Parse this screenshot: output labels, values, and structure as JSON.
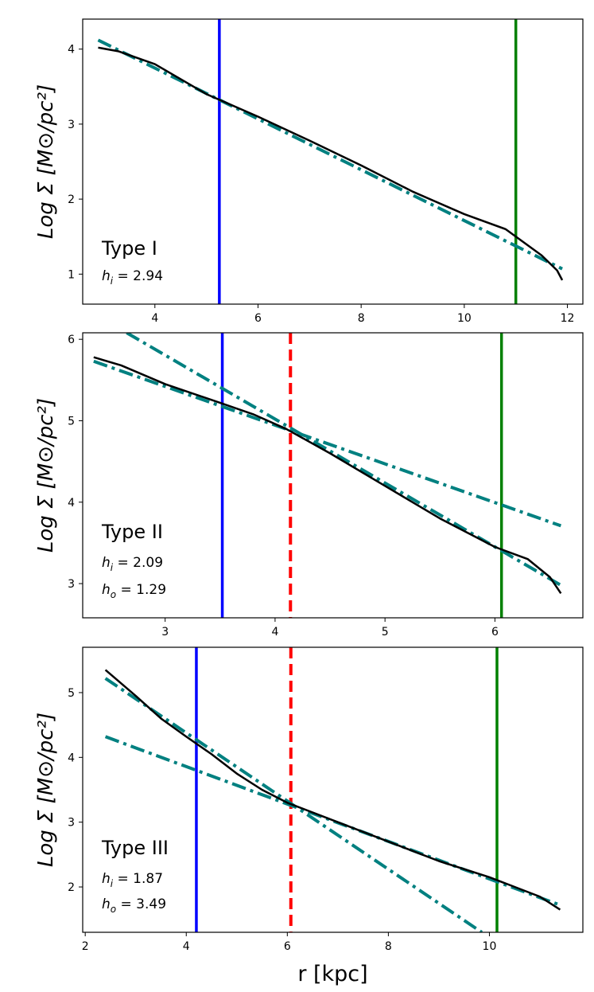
{
  "chart_data": [
    {
      "type": "line",
      "panel": "top",
      "xlim": [
        2.6,
        12.3
      ],
      "ylim": [
        0.6,
        4.4
      ],
      "xticks": [
        4,
        6,
        8,
        10,
        12
      ],
      "yticks": [
        1,
        2,
        3,
        4
      ],
      "ylabel": "Log Σ [M⊙/pc²]",
      "label_type": "Type I",
      "label_hi": "h",
      "label_hi_sub": "i",
      "label_hi_val": " = 2.94",
      "label_ho": null,
      "vlines": [
        {
          "name": "blue-line",
          "x": 5.25,
          "color": "#0000ff",
          "style": "solid"
        },
        {
          "name": "green-line",
          "x": 11.0,
          "color": "#008000",
          "style": "solid"
        }
      ],
      "fits": [
        {
          "name": "fit-inner",
          "x": [
            2.9,
            11.9
          ],
          "y": [
            4.12,
            1.07
          ]
        }
      ],
      "profile": {
        "x": [
          2.9,
          3.3,
          4.0,
          5.0,
          6.0,
          7.0,
          8.0,
          9.0,
          10.0,
          10.8,
          11.5,
          11.8,
          11.9
        ],
        "y": [
          4.02,
          3.97,
          3.8,
          3.4,
          3.1,
          2.78,
          2.45,
          2.1,
          1.8,
          1.6,
          1.25,
          1.05,
          0.92
        ]
      }
    },
    {
      "type": "line",
      "panel": "middle",
      "xlim": [
        2.25,
        6.8
      ],
      "ylim": [
        2.58,
        6.08
      ],
      "xticks": [
        3,
        4,
        5,
        6
      ],
      "yticks": [
        3,
        4,
        5,
        6
      ],
      "ylabel": "Log Σ [M⊙/pc²]",
      "label_type": "Type II",
      "label_hi": "h",
      "label_hi_sub": "i",
      "label_hi_val": " = 2.09",
      "label_ho": "h",
      "label_ho_sub": "o",
      "label_ho_val": " = 1.29",
      "vlines": [
        {
          "name": "blue-line",
          "x": 3.52,
          "color": "#0000ff",
          "style": "solid"
        },
        {
          "name": "red-break-line",
          "x": 4.14,
          "color": "#ff0000",
          "style": "dashed"
        },
        {
          "name": "green-line",
          "x": 6.06,
          "color": "#008000",
          "style": "solid"
        }
      ],
      "fits": [
        {
          "name": "fit-inner",
          "x": [
            2.35,
            6.6
          ],
          "y": [
            5.73,
            3.71
          ]
        },
        {
          "name": "fit-outer",
          "x": [
            2.65,
            6.6
          ],
          "y": [
            6.08,
            2.98
          ]
        }
      ],
      "profile": {
        "x": [
          2.35,
          2.6,
          3.0,
          3.5,
          3.8,
          4.1,
          4.5,
          5.0,
          5.5,
          6.0,
          6.3,
          6.5,
          6.6
        ],
        "y": [
          5.78,
          5.68,
          5.45,
          5.22,
          5.08,
          4.9,
          4.6,
          4.2,
          3.8,
          3.45,
          3.3,
          3.08,
          2.88
        ]
      }
    },
    {
      "type": "line",
      "panel": "bottom",
      "xlim": [
        1.95,
        11.85
      ],
      "ylim": [
        1.3,
        5.7
      ],
      "xticks": [
        2,
        4,
        6,
        8,
        10
      ],
      "yticks": [
        2,
        3,
        4,
        5
      ],
      "xlabel": "r [kpc]",
      "ylabel": "Log Σ [M⊙/pc²]",
      "label_type": "Type III",
      "label_hi": "h",
      "label_hi_sub": "i",
      "label_hi_val": " = 1.87",
      "label_ho": "h",
      "label_ho_sub": "o",
      "label_ho_val": " = 3.49",
      "vlines": [
        {
          "name": "blue-line",
          "x": 4.2,
          "color": "#0000ff",
          "style": "solid"
        },
        {
          "name": "red-break-line",
          "x": 6.07,
          "color": "#ff0000",
          "style": "dashed"
        },
        {
          "name": "green-line",
          "x": 10.15,
          "color": "#008000",
          "style": "solid"
        }
      ],
      "fits": [
        {
          "name": "fit-inner",
          "x": [
            2.4,
            9.85
          ],
          "y": [
            5.22,
            1.3
          ]
        },
        {
          "name": "fit-outer",
          "x": [
            2.4,
            11.4
          ],
          "y": [
            4.32,
            1.72
          ]
        }
      ],
      "profile": {
        "x": [
          2.4,
          3.0,
          3.5,
          4.0,
          4.5,
          5.0,
          5.5,
          6.0,
          7.0,
          8.0,
          9.0,
          10.0,
          11.0,
          11.4
        ],
        "y": [
          5.35,
          4.95,
          4.6,
          4.32,
          4.05,
          3.75,
          3.5,
          3.3,
          3.0,
          2.7,
          2.4,
          2.15,
          1.85,
          1.65
        ]
      }
    }
  ]
}
